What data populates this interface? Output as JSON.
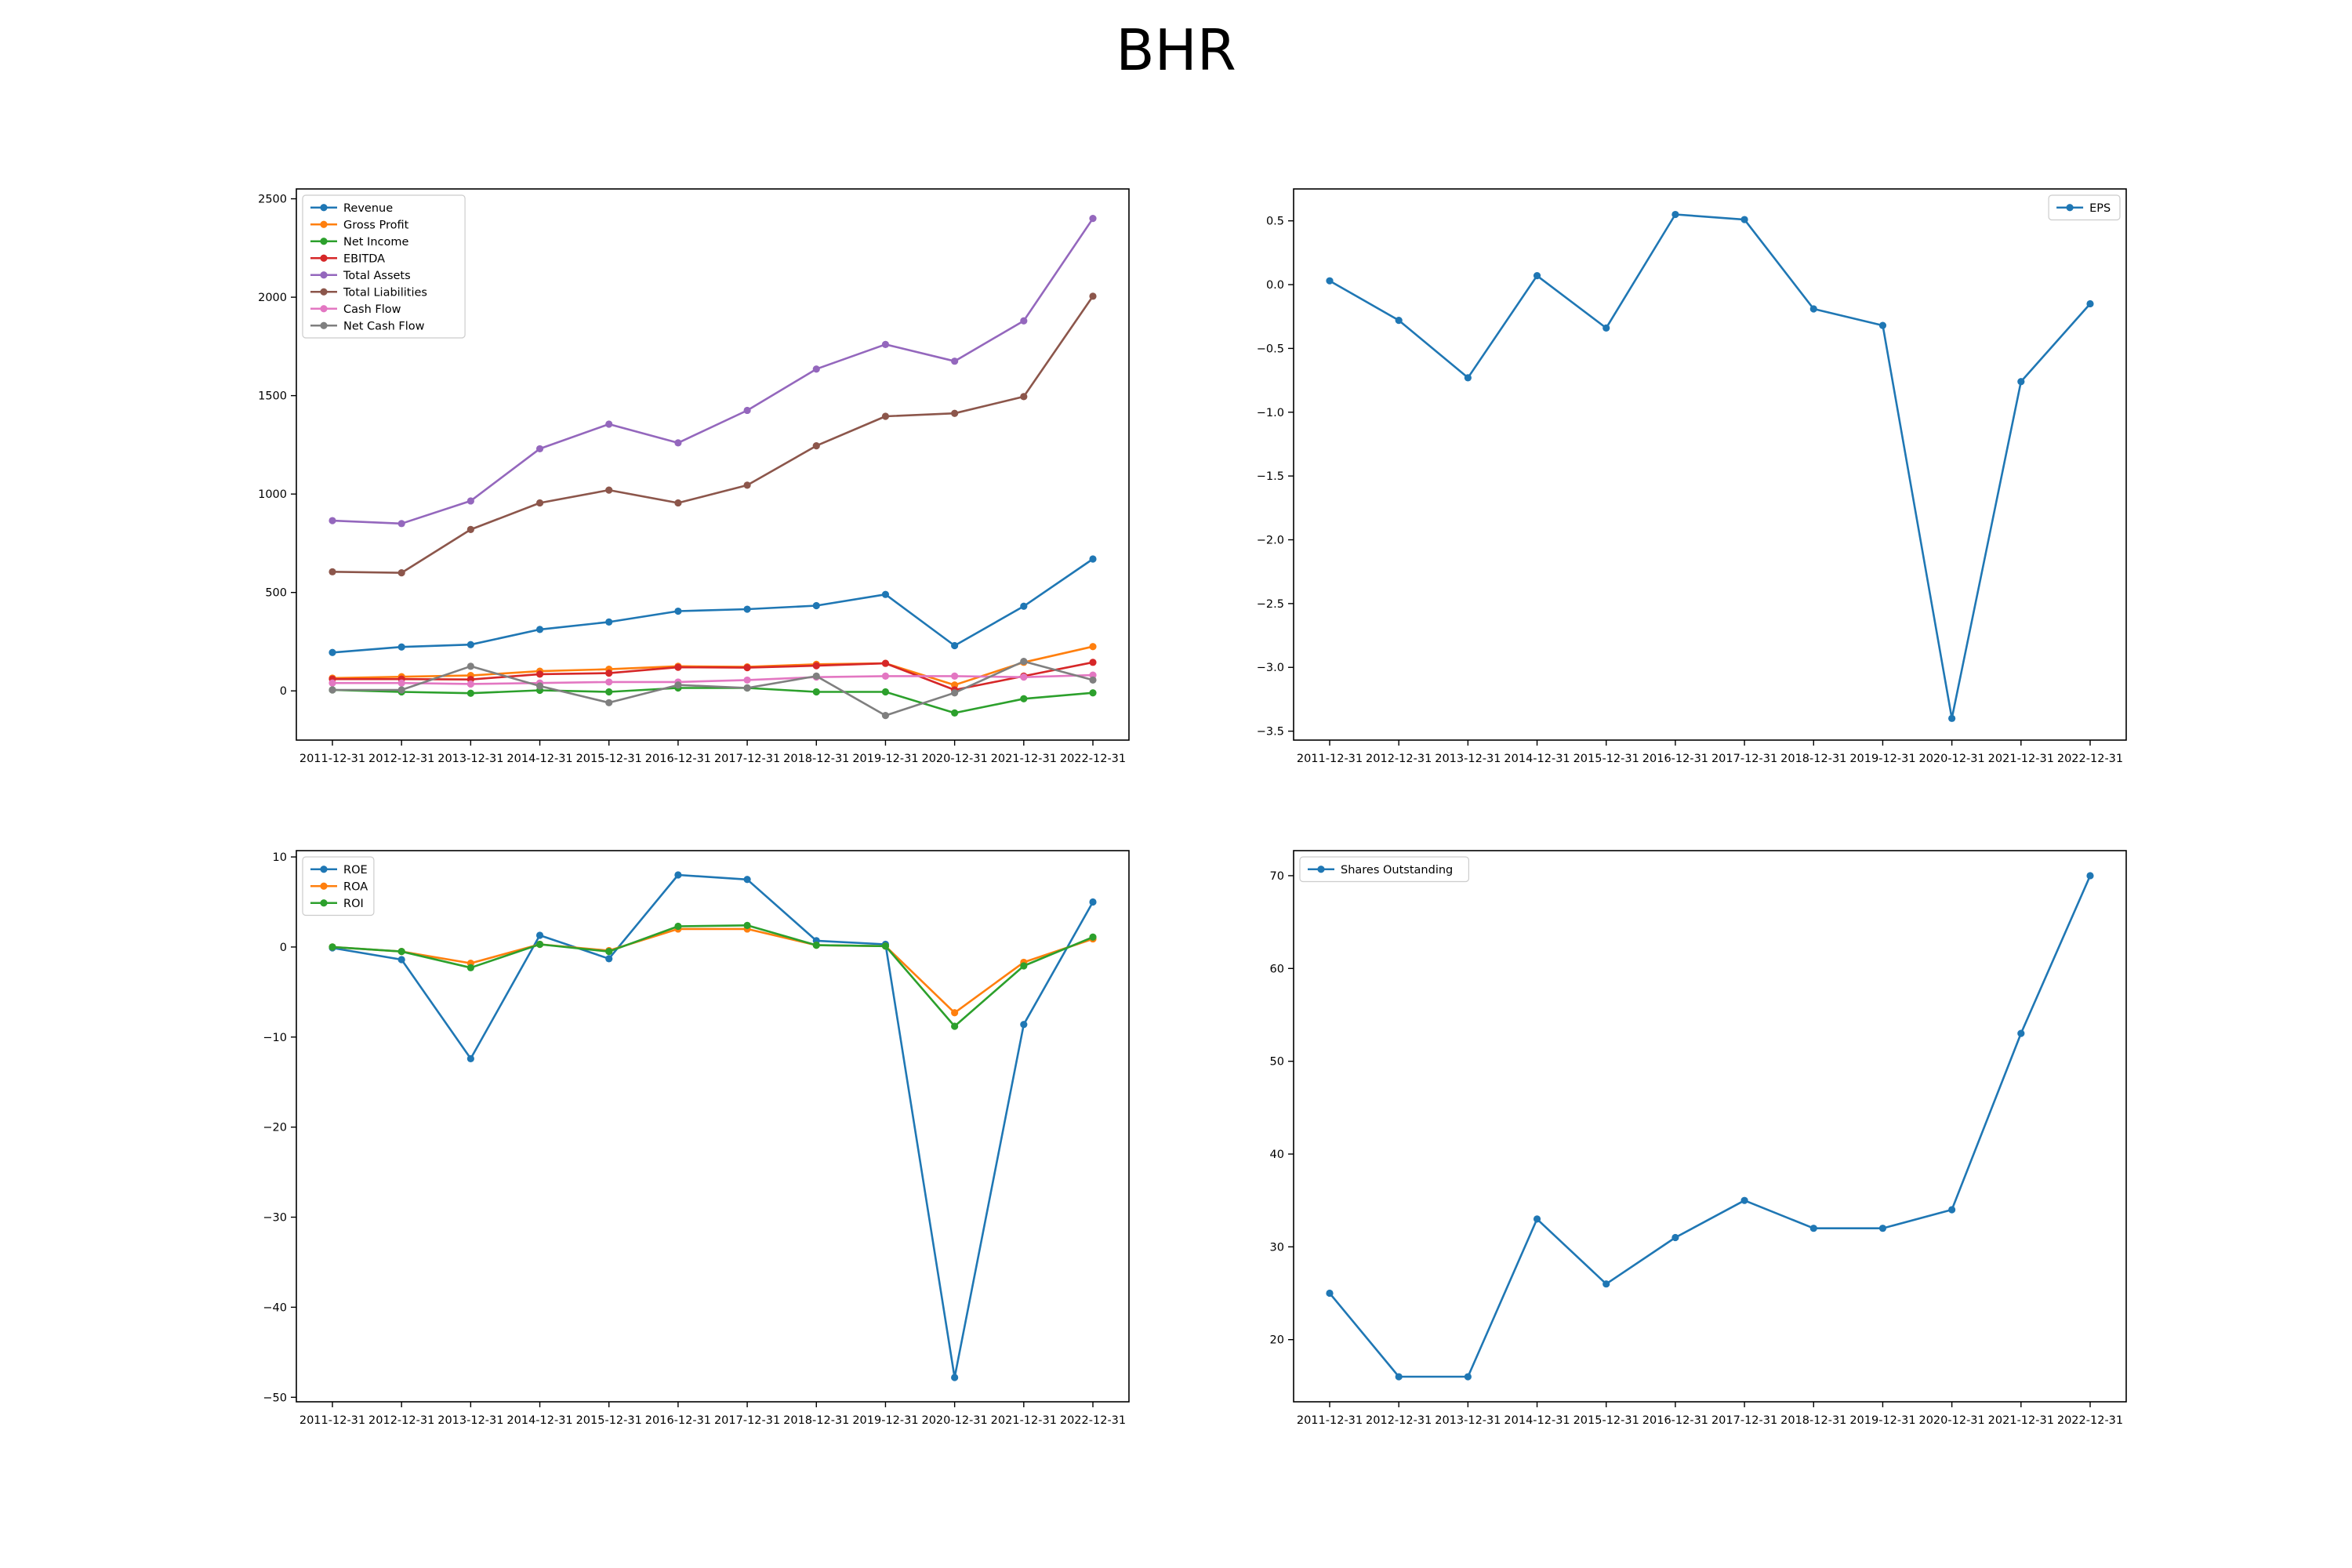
{
  "title": "BHR",
  "chart_data": [
    {
      "type": "line",
      "x": [
        "2011-12-31",
        "2012-12-31",
        "2013-12-31",
        "2014-12-31",
        "2015-12-31",
        "2016-12-31",
        "2017-12-31",
        "2018-12-31",
        "2019-12-31",
        "2020-12-31",
        "2021-12-31",
        "2022-12-31"
      ],
      "ylim": [
        -250,
        2550
      ],
      "yticks": [
        0,
        500,
        1000,
        1500,
        2000,
        2500
      ],
      "grid": false,
      "legend": "top-left",
      "series": [
        {
          "name": "Revenue",
          "color": "#1f77b4",
          "values": [
            195,
            223,
            235,
            312,
            350,
            405,
            415,
            433,
            490,
            230,
            430,
            670
          ]
        },
        {
          "name": "Gross Profit",
          "color": "#ff7f0e",
          "values": [
            65,
            72,
            78,
            100,
            110,
            125,
            122,
            135,
            140,
            30,
            145,
            225
          ]
        },
        {
          "name": "Net Income",
          "color": "#2ca02c",
          "values": [
            5,
            -5,
            -12,
            3,
            -5,
            15,
            15,
            -5,
            -5,
            -112,
            -40,
            -10
          ]
        },
        {
          "name": "EBITDA",
          "color": "#d62728",
          "values": [
            60,
            60,
            58,
            85,
            90,
            120,
            118,
            128,
            140,
            5,
            75,
            145
          ]
        },
        {
          "name": "Total Assets",
          "color": "#9467bd",
          "values": [
            865,
            850,
            965,
            1230,
            1355,
            1260,
            1425,
            1635,
            1760,
            1675,
            1880,
            2400
          ]
        },
        {
          "name": "Total Liabilities",
          "color": "#8c564b",
          "values": [
            605,
            600,
            820,
            955,
            1020,
            955,
            1045,
            1245,
            1395,
            1410,
            1495,
            2005
          ]
        },
        {
          "name": "Cash Flow",
          "color": "#e377c2",
          "values": [
            40,
            40,
            35,
            40,
            45,
            45,
            55,
            70,
            75,
            75,
            70,
            80
          ]
        },
        {
          "name": "Net Cash Flow",
          "color": "#7f7f7f",
          "values": [
            5,
            5,
            125,
            25,
            -60,
            30,
            15,
            75,
            -125,
            -10,
            150,
            55
          ]
        }
      ]
    },
    {
      "type": "line",
      "x": [
        "2011-12-31",
        "2012-12-31",
        "2013-12-31",
        "2014-12-31",
        "2015-12-31",
        "2016-12-31",
        "2017-12-31",
        "2018-12-31",
        "2019-12-31",
        "2020-12-31",
        "2021-12-31",
        "2022-12-31"
      ],
      "ylim": [
        -3.57,
        0.75
      ],
      "yticks": [
        -3.5,
        -3.0,
        -2.5,
        -2.0,
        -1.5,
        -1.0,
        -0.5,
        0.0,
        0.5
      ],
      "yticklabels": [
        "−3.5",
        "−3.0",
        "−2.5",
        "−2.0",
        "−1.5",
        "−1.0",
        "−0.5",
        "0.0",
        "0.5"
      ],
      "grid": false,
      "legend": "top-right",
      "series": [
        {
          "name": "EPS",
          "color": "#1f77b4",
          "values": [
            0.03,
            -0.28,
            -0.73,
            0.07,
            -0.34,
            0.55,
            0.51,
            -0.19,
            -0.32,
            -3.4,
            -0.76,
            -0.15
          ]
        }
      ]
    },
    {
      "type": "line",
      "x": [
        "2011-12-31",
        "2012-12-31",
        "2013-12-31",
        "2014-12-31",
        "2015-12-31",
        "2016-12-31",
        "2017-12-31",
        "2018-12-31",
        "2019-12-31",
        "2020-12-31",
        "2021-12-31",
        "2022-12-31"
      ],
      "ylim": [
        -50.5,
        10.7
      ],
      "yticks": [
        -50,
        -40,
        -30,
        -20,
        -10,
        0,
        10
      ],
      "yticklabels": [
        "−50",
        "−40",
        "−30",
        "−20",
        "−10",
        "0",
        "10"
      ],
      "grid": false,
      "legend": "top-left",
      "series": [
        {
          "name": "ROE",
          "color": "#1f77b4",
          "values": [
            -0.1,
            -1.4,
            -12.4,
            1.3,
            -1.3,
            8.0,
            7.5,
            0.7,
            0.3,
            -47.8,
            -8.6,
            5.0
          ]
        },
        {
          "name": "ROA",
          "color": "#ff7f0e",
          "values": [
            0.0,
            -0.5,
            -1.8,
            0.3,
            -0.4,
            2.0,
            2.0,
            0.2,
            0.1,
            -7.3,
            -1.7,
            0.9
          ]
        },
        {
          "name": "ROI",
          "color": "#2ca02c",
          "values": [
            0.0,
            -0.5,
            -2.3,
            0.3,
            -0.5,
            2.3,
            2.4,
            0.2,
            0.1,
            -8.8,
            -2.1,
            1.1
          ]
        }
      ]
    },
    {
      "type": "line",
      "x": [
        "2011-12-31",
        "2012-12-31",
        "2013-12-31",
        "2014-12-31",
        "2015-12-31",
        "2016-12-31",
        "2017-12-31",
        "2018-12-31",
        "2019-12-31",
        "2020-12-31",
        "2021-12-31",
        "2022-12-31"
      ],
      "ylim": [
        13.3,
        72.7
      ],
      "yticks": [
        20,
        30,
        40,
        50,
        60,
        70
      ],
      "grid": false,
      "legend": "top-left",
      "series": [
        {
          "name": "Shares Outstanding",
          "color": "#1f77b4",
          "values": [
            25,
            16,
            16,
            33,
            26,
            31,
            35,
            32,
            32,
            34,
            53,
            70
          ]
        }
      ]
    }
  ]
}
